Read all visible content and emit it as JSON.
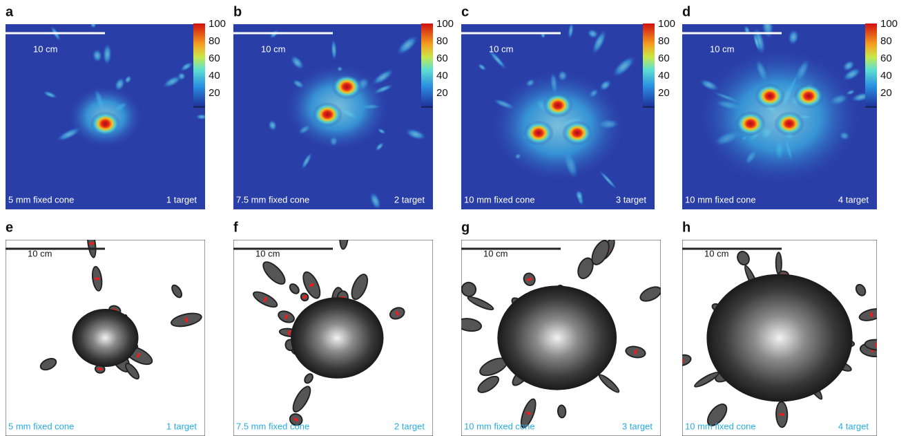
{
  "panels": [
    {
      "letter": "a",
      "scale_label": "10 cm",
      "cone": "5 mm fixed cone",
      "target": "1 target",
      "colorbar_ticks": [
        "100",
        "80",
        "60",
        "40",
        "20"
      ]
    },
    {
      "letter": "b",
      "scale_label": "10 cm",
      "cone": "7.5 mm fixed cone",
      "target": "2 target",
      "colorbar_ticks": [
        "100",
        "80",
        "60",
        "40",
        "20"
      ]
    },
    {
      "letter": "c",
      "scale_label": "10 cm",
      "cone": "10 mm fixed cone",
      "target": "3 target",
      "colorbar_ticks": [
        "100",
        "80",
        "60",
        "40",
        "20"
      ]
    },
    {
      "letter": "d",
      "scale_label": "10 cm",
      "cone": "10 mm fixed cone",
      "target": "4 target",
      "colorbar_ticks": [
        "100",
        "80",
        "60",
        "40",
        "20"
      ]
    },
    {
      "letter": "e",
      "scale_label": "10 cm",
      "cone": "5 mm fixed cone",
      "target": "1 target"
    },
    {
      "letter": "f",
      "scale_label": "10 cm",
      "cone": "7.5 mm fixed cone",
      "target": "2 target"
    },
    {
      "letter": "g",
      "scale_label": "10 cm",
      "cone": "10 mm fixed cone",
      "target": "3 target"
    },
    {
      "letter": "h",
      "scale_label": "10 cm",
      "cone": "10 mm fixed cone",
      "target": "4 target"
    }
  ]
}
